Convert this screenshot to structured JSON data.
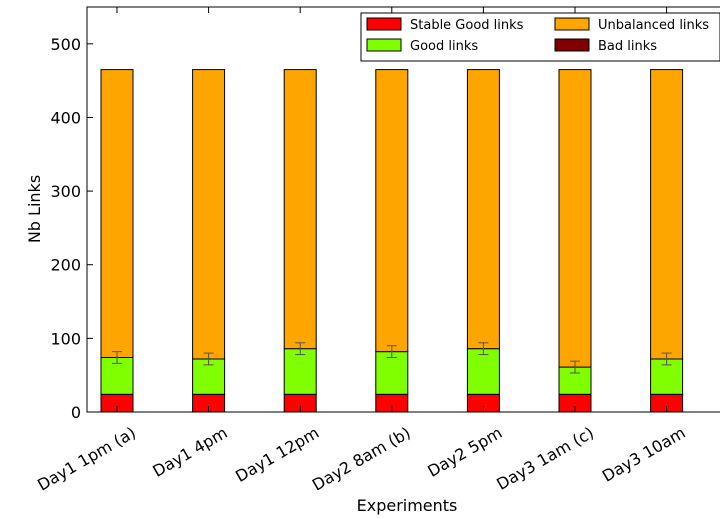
{
  "chart_data": {
    "type": "bar",
    "stacked": true,
    "xlabel": "Experiments",
    "ylabel": "Nb Links",
    "ylim": [
      0,
      550
    ],
    "yticks": [
      0,
      100,
      200,
      300,
      400,
      500
    ],
    "grid": false,
    "legend_position": "top-right",
    "categories": [
      "Day1 1pm (a)",
      "Day1 4pm",
      "Day1 12pm",
      "Day2 8am (b)",
      "Day2 5pm",
      "Day3 1am (c)",
      "Day3 10am"
    ],
    "series": [
      {
        "name": "Stable Good links",
        "color": "#ff0000",
        "values": [
          24,
          24,
          24,
          24,
          24,
          24,
          24
        ]
      },
      {
        "name": "Good links",
        "color": "#7fff00",
        "values": [
          50,
          48,
          62,
          58,
          62,
          37,
          48
        ],
        "error": [
          8,
          8,
          8,
          8,
          8,
          8,
          8
        ]
      },
      {
        "name": "Unbalanced links",
        "color": "#ffa500",
        "values": [
          391,
          393,
          379,
          383,
          379,
          404,
          393
        ]
      },
      {
        "name": "Bad links",
        "color": "#800000",
        "values": [
          0,
          0,
          0,
          0,
          0,
          0,
          0
        ]
      }
    ],
    "legend_order": [
      "Stable Good links",
      "Good links",
      "Unbalanced links",
      "Bad links"
    ]
  }
}
